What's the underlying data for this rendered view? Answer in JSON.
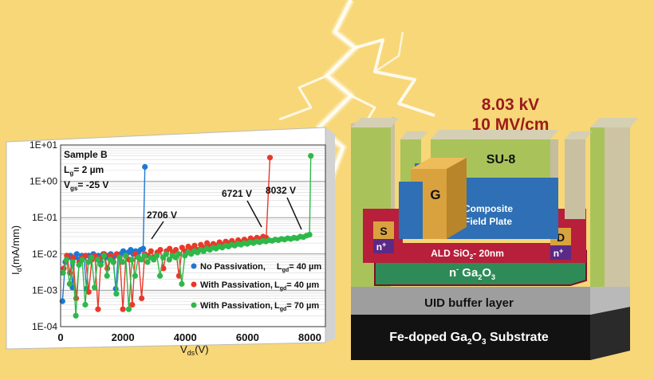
{
  "device": {
    "breakdown_voltage": "8.03 kV",
    "field": "10 MV/cm",
    "su8": "SU-8",
    "gate": "G",
    "field_plate_line1": "Composite",
    "field_plate_line2": "Field Plate",
    "source": "S",
    "drain": "D",
    "n_plus_left": "n",
    "n_plus_right": "n",
    "plus_sup": "+",
    "ald_prefix": "ALD SiO",
    "ald_sub": "2",
    "ald_suffix": "- 20nm",
    "channel_prefix": "n",
    "channel_minus": "-",
    "channel_ga": " Ga",
    "channel_sub1": "2",
    "channel_o": "O",
    "channel_sub2": "3",
    "buffer": "UID buffer layer",
    "substrate_prefix": "Fe-doped Ga",
    "substrate_sub1": "2",
    "substrate_o": "O",
    "substrate_sub2": "3",
    "substrate_suffix": " Substrate",
    "colors": {
      "background": "#f7d778",
      "su8": "#a9c35a",
      "field_plate": "#2e6fb5",
      "gate": "#d9a23e",
      "oxide": "#b81f3a",
      "channel": "#2e8b57",
      "buffer": "#9e9e9e",
      "substrate": "#121212"
    }
  },
  "chart_data": {
    "type": "scatter",
    "x_scale": "linear",
    "y_scale": "log",
    "xlim": [
      0,
      8500
    ],
    "ylim": [
      0.0001,
      10
    ],
    "x_ticks": [
      "0",
      "2000",
      "4000",
      "6000",
      "8000"
    ],
    "y_ticks": [
      "1E+01",
      "1E+00",
      "1E-01",
      "1E-02",
      "1E-03",
      "1E-04"
    ],
    "xlabel_main": "V",
    "xlabel_sub": "ds",
    "xlabel_unit": "(V)",
    "ylabel_main": "I",
    "ylabel_sub": "d",
    "ylabel_unit": "(mA/mm)",
    "sample_info": {
      "line1": "Sample B",
      "line2_main": "L",
      "line2_sub": "g",
      "line2_rest": "= 2 µm",
      "line3_main": "V",
      "line3_sub": "gs",
      "line3_rest": "= -25 V"
    },
    "annotations": [
      {
        "text": "2706 V",
        "x": 2706,
        "y": 0.015
      },
      {
        "text": "6721 V",
        "x": 6721,
        "y": 0.03
      },
      {
        "text": "8032 V",
        "x": 8032,
        "y": 0.04
      }
    ],
    "series": [
      {
        "name": "No Passivation,",
        "legend_suffix": "L",
        "legend_sub": "gd",
        "legend_rest": "= 40 µm",
        "color": "#1f77d4",
        "breakdown_x": 2706,
        "breakdown_top": 2.5,
        "x": [
          60,
          150,
          230,
          310,
          380,
          450,
          520,
          600,
          680,
          750,
          830,
          900,
          980,
          1050,
          1130,
          1210,
          1290,
          1370,
          1450,
          1530,
          1610,
          1690,
          1770,
          1850,
          1930,
          2010,
          2090,
          2170,
          2250,
          2330,
          2410,
          2490,
          2570,
          2650
        ],
        "y": [
          0.0005,
          0.006,
          0.008,
          0.009,
          0.0012,
          0.008,
          0.01,
          0.007,
          0.009,
          0.008,
          0.0011,
          0.009,
          0.007,
          0.01,
          0.008,
          0.009,
          0.006,
          0.01,
          0.008,
          0.009,
          0.01,
          0.008,
          0.0011,
          0.009,
          0.01,
          0.012,
          0.009,
          0.011,
          0.013,
          0.01,
          0.012,
          0.011,
          0.013,
          0.014
        ]
      },
      {
        "name": "With Passivation,",
        "legend_suffix": "L",
        "legend_sub": "gd",
        "legend_rest": "= 40 µm",
        "color": "#e8392b",
        "breakdown_x": 6721,
        "breakdown_top": 4.5,
        "x": [
          100,
          200,
          300,
          400,
          500,
          600,
          700,
          800,
          900,
          1000,
          1100,
          1200,
          1300,
          1400,
          1500,
          1600,
          1700,
          1800,
          1900,
          2000,
          2100,
          2200,
          2300,
          2400,
          2500,
          2600,
          2700,
          2800,
          2900,
          3000,
          3100,
          3200,
          3300,
          3400,
          3500,
          3600,
          3700,
          3800,
          3900,
          4000,
          4100,
          4200,
          4300,
          4400,
          4500,
          4600,
          4700,
          4800,
          4900,
          5000,
          5100,
          5200,
          5300,
          5400,
          5500,
          5600,
          5700,
          5800,
          5900,
          6000,
          6100,
          6200,
          6300,
          6400,
          6500,
          6600
        ],
        "y": [
          0.004,
          0.009,
          0.003,
          0.008,
          0.0006,
          0.006,
          0.008,
          0.009,
          0.0009,
          0.007,
          0.009,
          0.0003,
          0.008,
          0.01,
          0.004,
          0.009,
          0.006,
          0.01,
          0.008,
          0.0003,
          0.009,
          0.007,
          0.0004,
          0.01,
          0.008,
          0.0006,
          0.01,
          0.009,
          0.012,
          0.008,
          0.011,
          0.013,
          0.004,
          0.012,
          0.014,
          0.011,
          0.013,
          0.0025,
          0.015,
          0.012,
          0.016,
          0.014,
          0.017,
          0.013,
          0.018,
          0.015,
          0.02,
          0.016,
          0.019,
          0.017,
          0.021,
          0.018,
          0.022,
          0.02,
          0.023,
          0.019,
          0.024,
          0.021,
          0.025,
          0.022,
          0.027,
          0.024,
          0.028,
          0.026,
          0.03,
          0.028
        ]
      },
      {
        "name": "With Passivation,",
        "legend_suffix": "L",
        "legend_sub": "gd",
        "legend_rest": "= 70 µm",
        "color": "#2fb84a",
        "breakdown_x": 8032,
        "breakdown_top": 5.0,
        "x": [
          80,
          190,
          290,
          390,
          490,
          590,
          690,
          790,
          890,
          990,
          1090,
          1190,
          1290,
          1390,
          1490,
          1590,
          1690,
          1790,
          1890,
          1990,
          2090,
          2190,
          2290,
          2390,
          2490,
          2590,
          2690,
          2790,
          2890,
          2990,
          3090,
          3190,
          3290,
          3390,
          3490,
          3590,
          3690,
          3790,
          3890,
          3990,
          4090,
          4190,
          4290,
          4390,
          4490,
          4590,
          4690,
          4790,
          4890,
          4990,
          5090,
          5190,
          5290,
          5390,
          5490,
          5590,
          5690,
          5790,
          5890,
          5990,
          6090,
          6190,
          6290,
          6390,
          6490,
          6590,
          6690,
          6790,
          6890,
          6990,
          7090,
          7190,
          7290,
          7390,
          7490,
          7590,
          7690,
          7790,
          7890,
          7990
        ],
        "y": [
          0.003,
          0.007,
          0.0015,
          0.006,
          0.0002,
          0.005,
          0.007,
          0.0004,
          0.006,
          0.008,
          0.0012,
          0.007,
          0.005,
          0.009,
          0.0025,
          0.007,
          0.006,
          0.0008,
          0.008,
          0.006,
          0.009,
          0.0003,
          0.007,
          0.0025,
          0.008,
          0.007,
          0.009,
          0.006,
          0.008,
          0.007,
          0.009,
          0.0025,
          0.008,
          0.01,
          0.007,
          0.009,
          0.008,
          0.01,
          0.0015,
          0.009,
          0.011,
          0.01,
          0.012,
          0.011,
          0.013,
          0.012,
          0.014,
          0.013,
          0.015,
          0.014,
          0.016,
          0.015,
          0.017,
          0.016,
          0.018,
          0.017,
          0.019,
          0.018,
          0.02,
          0.019,
          0.021,
          0.02,
          0.022,
          0.021,
          0.023,
          0.022,
          0.024,
          0.023,
          0.025,
          0.024,
          0.026,
          0.025,
          0.027,
          0.026,
          0.028,
          0.027,
          0.03,
          0.029,
          0.032,
          0.034
        ]
      }
    ]
  }
}
